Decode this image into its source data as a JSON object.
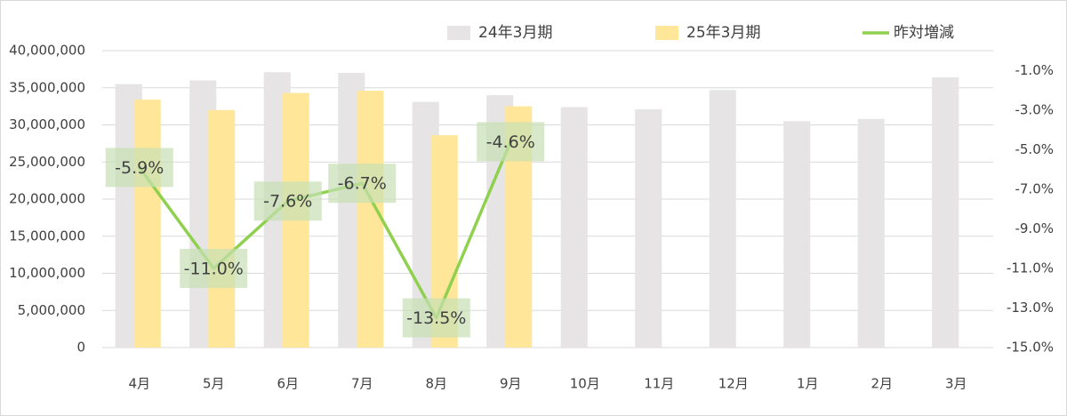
{
  "chart_data": {
    "type": "bar",
    "categories": [
      "4月",
      "5月",
      "6月",
      "7月",
      "8月",
      "9月",
      "10月",
      "11月",
      "12月",
      "1月",
      "2月",
      "3月"
    ],
    "series": [
      {
        "name": "24年3月期",
        "type": "bar",
        "color": "#e6e4e5",
        "values": [
          35500000,
          36000000,
          37100000,
          37000000,
          33100000,
          34000000,
          32400000,
          32100000,
          34700000,
          30500000,
          30800000,
          36400000
        ]
      },
      {
        "name": "25年3月期",
        "type": "bar",
        "color": "#ffe699",
        "values": [
          33400000,
          32000000,
          34300000,
          34600000,
          28600000,
          32500000,
          null,
          null,
          null,
          null,
          null,
          null
        ]
      },
      {
        "name": "昨対増減",
        "type": "line",
        "axis": "y2",
        "color": "#8fd14f",
        "label_box_color": "#c6e0b4",
        "values": [
          -5.9,
          -11.0,
          -7.6,
          -6.7,
          -13.5,
          -4.6,
          null,
          null,
          null,
          null,
          null,
          null
        ],
        "value_labels": [
          "-5.9%",
          "-11.0%",
          "-7.6%",
          "-6.7%",
          "-13.5%",
          "-4.6%",
          null,
          null,
          null,
          null,
          null,
          null
        ]
      }
    ],
    "ylim": [
      0,
      40000000
    ],
    "yticks": [
      0,
      {
        "value": 5000000,
        "label": "5,000,000"
      },
      {
        "value": 10000000,
        "label": "10,000,000"
      },
      {
        "value": 15000000,
        "label": "15,000,000"
      },
      {
        "value": 20000000,
        "label": "20,000,000"
      },
      {
        "value": 25000000,
        "label": "25,000,000"
      },
      {
        "value": 30000000,
        "label": "30,000,000"
      },
      {
        "value": 35000000,
        "label": "35,000,000"
      },
      {
        "value": 40000000,
        "label": "40,000,000"
      }
    ],
    "y2lim": [
      -15,
      0
    ],
    "y2ticks": [
      {
        "value": -15,
        "label": "-15.0%"
      },
      {
        "value": -13,
        "label": "-13.0%"
      },
      {
        "value": -11,
        "label": "-11.0%"
      },
      {
        "value": -9,
        "label": "-9.0%"
      },
      {
        "value": -7,
        "label": "-7.0%"
      },
      {
        "value": -5,
        "label": "-5.0%"
      },
      {
        "value": -3,
        "label": "-3.0%"
      },
      {
        "value": -1,
        "label": "-1.0%"
      }
    ],
    "grid": true
  }
}
